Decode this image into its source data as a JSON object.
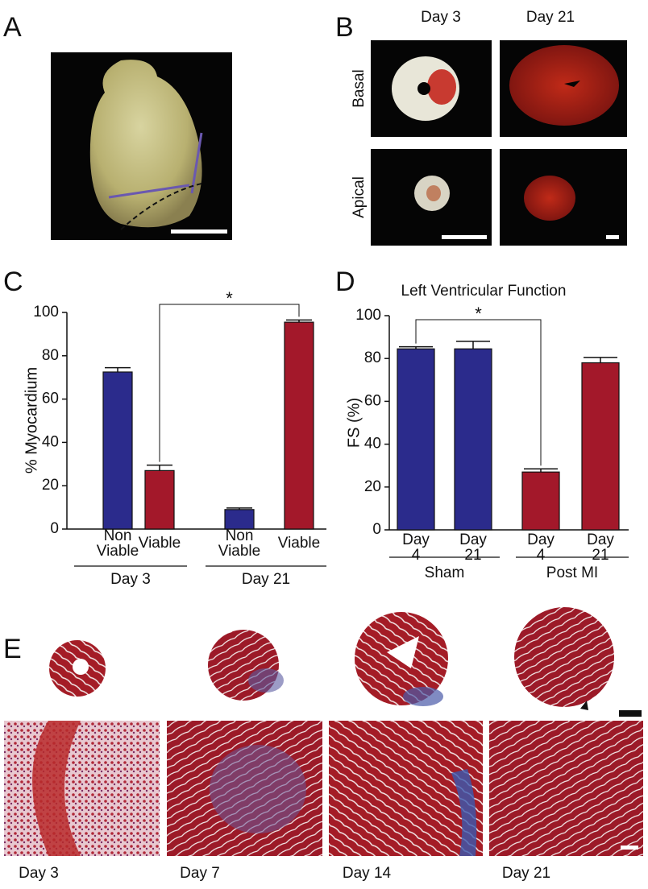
{
  "panel_labels": [
    "A",
    "B",
    "C",
    "D",
    "E"
  ],
  "panel_b": {
    "columns": [
      "Day 3",
      "Day 21"
    ],
    "rows": [
      "Basal",
      "Apical"
    ]
  },
  "chart_data": [
    {
      "type": "bar",
      "ylabel": "% Myocardium",
      "categories": [
        "Non Viable",
        "Viable",
        "Non Viable",
        "Viable"
      ],
      "groups": [
        "Day 3",
        "Day 21"
      ],
      "values": [
        72.5,
        27,
        9,
        95.5
      ],
      "errors": [
        2,
        2.5,
        0.7,
        1
      ],
      "colors": [
        "#2b2b8c",
        "#a3182a",
        "#2b2b8c",
        "#a3182a"
      ],
      "ylim": [
        0,
        100
      ],
      "yticks": [
        0,
        20,
        40,
        60,
        80,
        100
      ],
      "significance": {
        "label": "*",
        "between": [
          1,
          3
        ]
      }
    },
    {
      "type": "bar",
      "title": "Left Ventricular Function",
      "ylabel": "FS (%)",
      "categories": [
        "Day 4",
        "Day 21",
        "Day 4",
        "Day 21"
      ],
      "groups": [
        "Sham",
        "Post MI"
      ],
      "values": [
        84.5,
        84.5,
        27,
        78
      ],
      "errors": [
        1,
        3.5,
        1.5,
        2.5
      ],
      "colors": [
        "#2b2b8c",
        "#2b2b8c",
        "#a3182a",
        "#a3182a"
      ],
      "ylim": [
        0,
        100
      ],
      "yticks": [
        0,
        20,
        40,
        60,
        80,
        100
      ],
      "significance": {
        "label": "*",
        "between": [
          0,
          2
        ]
      }
    }
  ],
  "panel_e": {
    "labels": [
      "Day 3",
      "Day 7",
      "Day 14",
      "Day 21"
    ]
  }
}
